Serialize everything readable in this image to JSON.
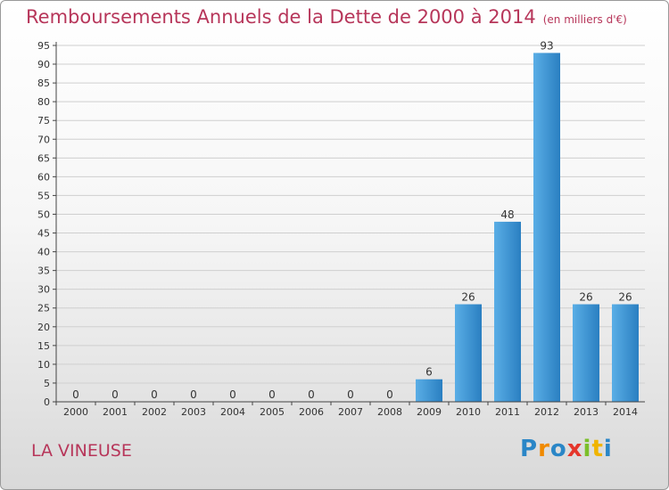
{
  "header": {
    "title": "Remboursements Annuels de la Dette de 2000 à 2014",
    "unit": "(en milliers d'€)"
  },
  "footer": {
    "commune": "LA VINEUSE",
    "logo_text": "Proxiti"
  },
  "colors": {
    "title": "#b7365a",
    "bar_light": "#5aaee6",
    "bar_dark": "#2a7fc1"
  },
  "chart_data": {
    "type": "bar",
    "title": "Remboursements Annuels de la Dette de 2000 à 2014",
    "categories": [
      "2000",
      "2001",
      "2002",
      "2003",
      "2004",
      "2005",
      "2006",
      "2007",
      "2008",
      "2009",
      "2010",
      "2011",
      "2012",
      "2013",
      "2014"
    ],
    "values": [
      0,
      0,
      0,
      0,
      0,
      0,
      0,
      0,
      0,
      6,
      26,
      48,
      93,
      26,
      26
    ],
    "ylim": [
      0,
      95
    ],
    "yticks": [
      0,
      5,
      10,
      15,
      20,
      25,
      30,
      35,
      40,
      45,
      50,
      55,
      60,
      65,
      70,
      75,
      80,
      85,
      90,
      95
    ],
    "grid": true
  }
}
